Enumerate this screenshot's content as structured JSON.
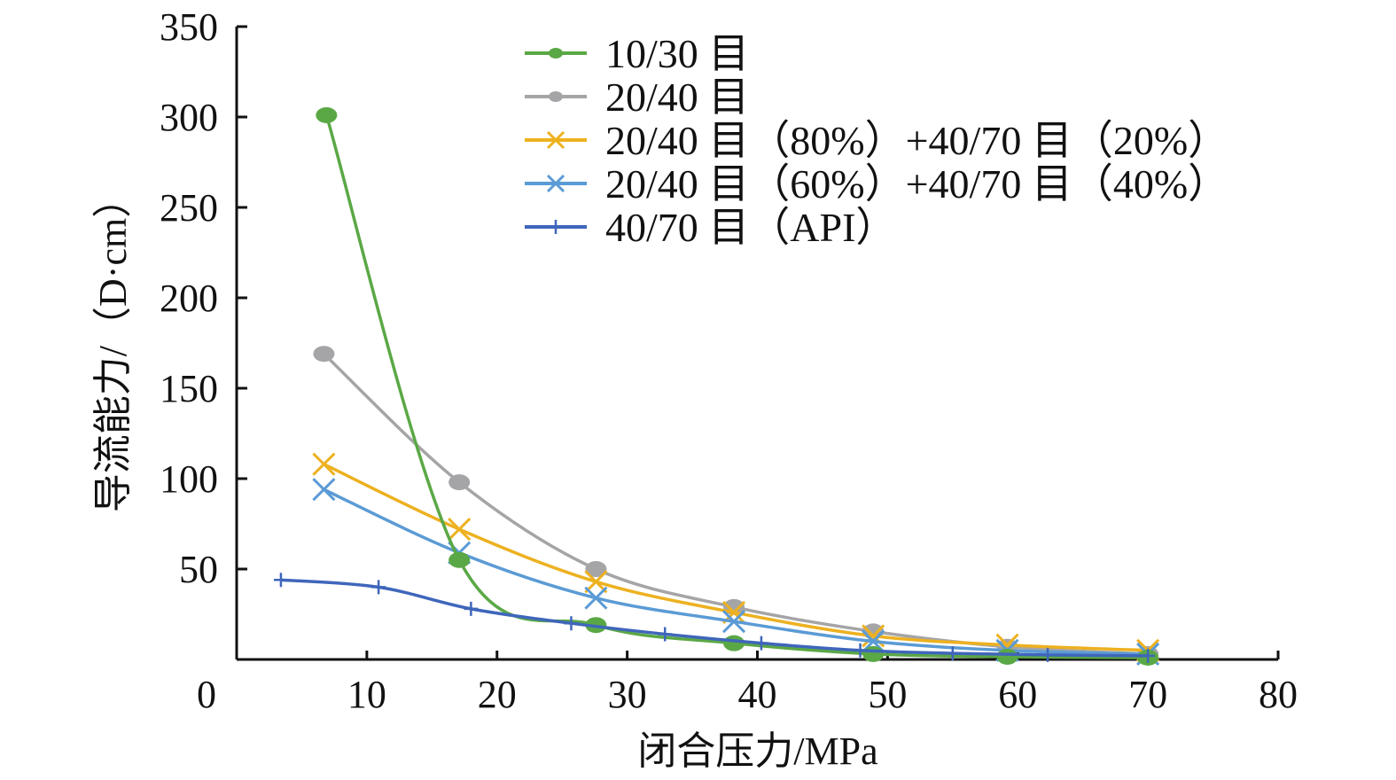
{
  "chart_data": {
    "type": "line",
    "title": "",
    "xlabel": "闭合压力/MPa",
    "ylabel": "导流能力/（D·cm）",
    "xlim": [
      0,
      80
    ],
    "ylim": [
      0,
      350
    ],
    "xticks": [
      0,
      10,
      20,
      30,
      40,
      50,
      60,
      70,
      80
    ],
    "yticks": [
      50,
      100,
      150,
      200,
      250,
      300,
      350
    ],
    "grid": false,
    "legend_position": "top-center",
    "series": [
      {
        "name": "10/30 目",
        "color": "#5aa845",
        "marker": "circle",
        "x": [
          6.9,
          17.1,
          27.6,
          38.2,
          48.9,
          59.2,
          70
        ],
        "y": [
          301,
          55,
          19,
          9,
          3,
          1.5,
          1
        ]
      },
      {
        "name": "20/40 目",
        "color": "#a5a5a7",
        "marker": "circle",
        "x": [
          6.7,
          17.1,
          27.6,
          38.2,
          48.9,
          59.2,
          70
        ],
        "y": [
          169,
          98,
          50,
          29,
          15.5,
          7,
          3
        ]
      },
      {
        "name": "20/40 目（80%）+40/70 目（20%）",
        "color": "#edb120",
        "marker": "x",
        "x": [
          6.7,
          17.1,
          27.6,
          38.2,
          48.9,
          59.2,
          70
        ],
        "y": [
          108,
          72,
          43,
          26,
          13,
          8,
          5
        ]
      },
      {
        "name": "20/40 目（60%）+40/70 目（40%）",
        "color": "#5b9bd5",
        "marker": "x",
        "x": [
          6.7,
          17.1,
          27.6,
          38.2,
          48.9,
          59.2,
          70
        ],
        "y": [
          94,
          59,
          34,
          21,
          10,
          5,
          3
        ]
      },
      {
        "name": "40/70 目（API）",
        "color": "#3f66bb",
        "marker": "plus",
        "x": [
          3.4,
          10.9,
          18,
          25.7,
          32.9,
          40.3,
          47.9,
          55,
          62.3,
          70
        ],
        "y": [
          44,
          40,
          28,
          20,
          14,
          9,
          5,
          3.4,
          2.5,
          2
        ]
      }
    ]
  }
}
